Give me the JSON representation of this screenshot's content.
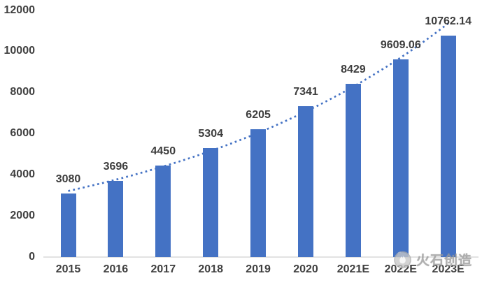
{
  "chart_data": {
    "type": "bar",
    "categories": [
      "2015",
      "2016",
      "2017",
      "2018",
      "2019",
      "2020",
      "2021E",
      "2022E",
      "2023E"
    ],
    "values": [
      3080,
      3696,
      4450,
      5304,
      6205,
      7341,
      8429,
      9609.06,
      10762.14
    ],
    "value_labels": [
      "3080",
      "3696",
      "4450",
      "5304",
      "6205",
      "7341",
      "8429",
      "9609.06",
      "10762.14"
    ],
    "title": "",
    "xlabel": "",
    "ylabel": "",
    "ylim": [
      0,
      12000
    ],
    "y_tick_labels": [
      "0",
      "2000",
      "4000",
      "6000",
      "8000",
      "10000",
      "12000"
    ],
    "y_ticks": [
      0,
      2000,
      4000,
      6000,
      8000,
      10000,
      12000
    ],
    "grid": "off",
    "legend": "none",
    "bar_color": "#4472c4",
    "trendline": {
      "type": "exponential",
      "style": "dotted",
      "color": "#4472c4"
    }
  },
  "watermark": {
    "text": "火石创造",
    "logo": "flame-circle-logo",
    "color": "#9a9a9a"
  },
  "colors": {
    "background": "#ffffff",
    "axis_text": "#404040",
    "data_label_text": "#3d3d3d",
    "baseline": "#d9d9d9"
  }
}
